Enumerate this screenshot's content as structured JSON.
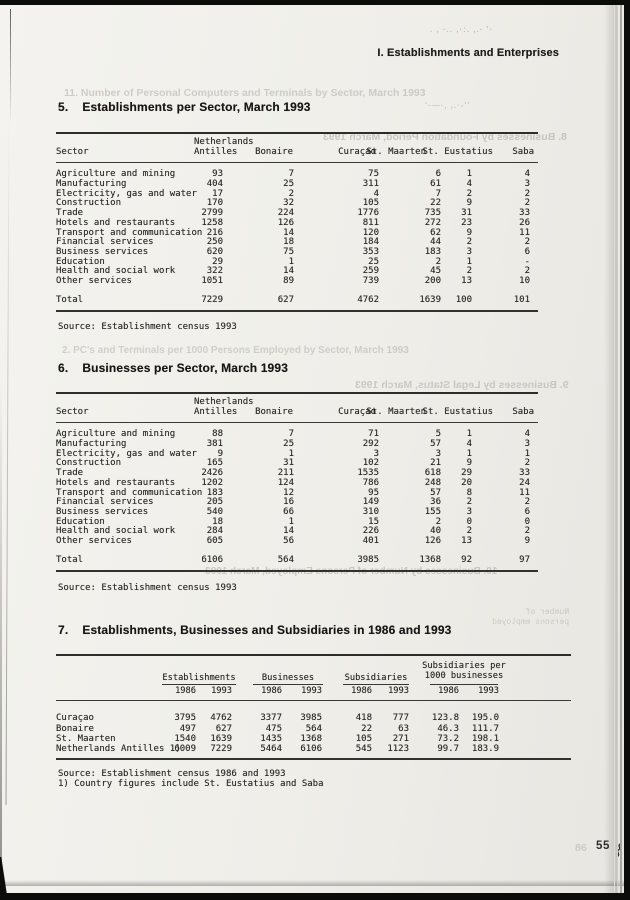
{
  "page": {
    "section_header": "I. Establishments and Enterprises",
    "page_number": "55"
  },
  "table5": {
    "number": "5.",
    "title": "Establishments per Sector, March 1993",
    "header": {
      "sector": "Sector",
      "na1": "Netherlands",
      "na2": "Antilles",
      "cols": [
        "Bonaire",
        "Curaçao",
        "St. Maarten",
        "St. Eustatius",
        "Saba"
      ]
    },
    "rows": [
      [
        "Agriculture and mining",
        "93",
        "7",
        "75",
        "6",
        "1",
        "4"
      ],
      [
        "Manufacturing",
        "404",
        "25",
        "311",
        "61",
        "4",
        "3"
      ],
      [
        "Electricity, gas and water",
        "17",
        "2",
        "4",
        "7",
        "2",
        "2"
      ],
      [
        "Construction",
        "170",
        "32",
        "105",
        "22",
        "9",
        "2"
      ],
      [
        "Trade",
        "2799",
        "224",
        "1776",
        "735",
        "31",
        "33"
      ],
      [
        "Hotels and restaurants",
        "1258",
        "126",
        "811",
        "272",
        "23",
        "26"
      ],
      [
        "Transport and communication",
        "216",
        "14",
        "120",
        "62",
        "9",
        "11"
      ],
      [
        "Financial services",
        "250",
        "18",
        "184",
        "44",
        "2",
        "2"
      ],
      [
        "Business services",
        "620",
        "75",
        "353",
        "183",
        "3",
        "6"
      ],
      [
        "Education",
        "29",
        "1",
        "25",
        "2",
        "1",
        "-"
      ],
      [
        "Health and social work",
        "322",
        "14",
        "259",
        "45",
        "2",
        "2"
      ],
      [
        "Other services",
        "1051",
        "89",
        "739",
        "200",
        "13",
        "10"
      ]
    ],
    "total": [
      [
        "Total",
        "7229",
        "627",
        "4762",
        "1639",
        "100",
        "101"
      ]
    ],
    "source": "Source: Establishment census 1993"
  },
  "table6": {
    "number": "6.",
    "title": "Businesses per Sector, March 1993",
    "header": {
      "sector": "Sector",
      "na1": "Netherlands",
      "na2": "Antilles",
      "cols": [
        "Bonaire",
        "Curaçao",
        "St. Maarten",
        "St. Eustatius",
        "Saba"
      ]
    },
    "rows": [
      [
        "Agriculture and mining",
        "88",
        "7",
        "71",
        "5",
        "1",
        "4"
      ],
      [
        "Manufacturing",
        "381",
        "25",
        "292",
        "57",
        "4",
        "3"
      ],
      [
        "Electricity, gas and water",
        "9",
        "1",
        "3",
        "3",
        "1",
        "1"
      ],
      [
        "Construction",
        "165",
        "31",
        "102",
        "21",
        "9",
        "2"
      ],
      [
        "Trade",
        "2426",
        "211",
        "1535",
        "618",
        "29",
        "33"
      ],
      [
        "Hotels and restaurants",
        "1202",
        "124",
        "786",
        "248",
        "20",
        "24"
      ],
      [
        "Transport and communication",
        "183",
        "12",
        "95",
        "57",
        "8",
        "11"
      ],
      [
        "Financial services",
        "205",
        "16",
        "149",
        "36",
        "2",
        "2"
      ],
      [
        "Business services",
        "540",
        "66",
        "310",
        "155",
        "3",
        "6"
      ],
      [
        "Education",
        "18",
        "1",
        "15",
        "2",
        "0",
        "0"
      ],
      [
        "Health and social work",
        "284",
        "14",
        "226",
        "40",
        "2",
        "2"
      ],
      [
        "Other services",
        "605",
        "56",
        "401",
        "126",
        "13",
        "9"
      ]
    ],
    "total": [
      [
        "Total",
        "6106",
        "564",
        "3985",
        "1368",
        "92",
        "97"
      ]
    ],
    "source": "Source: Establishment census 1993"
  },
  "table7": {
    "number": "7.",
    "title": "Establishments, Businesses and Subsidiaries in 1986 and 1993",
    "groups": [
      "Establishments",
      "Businesses",
      "Subsidiaries"
    ],
    "group4": [
      "Subsidiaries per",
      "1000 businesses"
    ],
    "years": [
      [
        "",
        "1986",
        "1993",
        "1986",
        "1993",
        "1986",
        "1993",
        "1986",
        "1993"
      ]
    ],
    "rows": [
      [
        "Curaçao",
        "3795",
        "4762",
        "3377",
        "3985",
        "418",
        "777",
        "123.8",
        "195.0"
      ],
      [
        "Bonaire",
        "497",
        "627",
        "475",
        "564",
        "22",
        "63",
        "46.3",
        "111.7"
      ],
      [
        "St. Maarten",
        "1540",
        "1639",
        "1435",
        "1368",
        "105",
        "271",
        "73.2",
        "198.1"
      ],
      [
        "Netherlands Antilles 1)",
        "6009",
        "7229",
        "5464",
        "6106",
        "545",
        "1123",
        "99.7",
        "183.9"
      ]
    ],
    "source": "Source: Establishment census 1986 and 1993",
    "footnote": "1) Country figures include St. Eustatius and Saba"
  },
  "artifacts": {
    "bleed1": "11. Number of Personal Computers and Terminals by Sector, March 1993",
    "bleed2": "8. Businesses by Foundation Period, March 1993",
    "bleed3": "2. PC's and Terminals per 1000 Persons Employed by Sector, March 1993",
    "bleed4": "9. Businesses by Legal Status, March 1993",
    "bleed5": "10. Businesses by Number of Persons Employed, March 1993",
    "bleed6": "Number of\npersons employed",
    "bleed_page": "86",
    "smudge_top": ". , ·.. ,·:.  ,.·  '·",
    "smudge_title": "'·—·, ,.·-''"
  },
  "colors": {
    "paper": "#efeee9",
    "ink": "#2c2b28",
    "edge": "#0c0c0b"
  }
}
